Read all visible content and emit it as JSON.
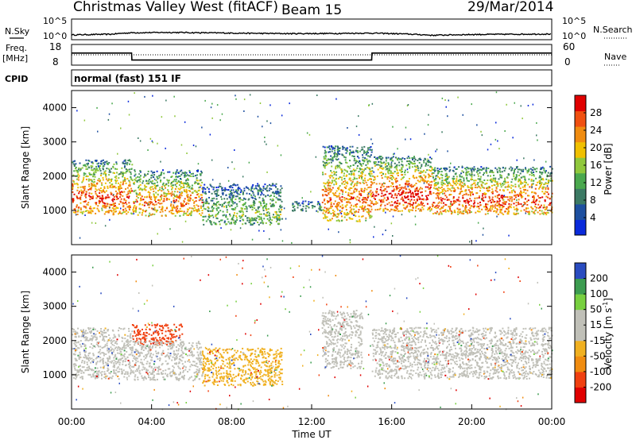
{
  "header": {
    "title": "Christmas Valley West (fitACF)",
    "beam": "Beam 15",
    "date": "29/Mar/2014"
  },
  "nsky_panel": {
    "left_label": "N.Sky",
    "right_label": "N.Search",
    "left_ticks": [
      "10^5",
      "10^0"
    ],
    "right_ticks": [
      "10^5",
      "10^0"
    ]
  },
  "freq_panel": {
    "left_label_1": "Freq.",
    "left_label_2": "[MHz]",
    "left_ticks": [
      "18",
      "8"
    ],
    "right_label": "Nave",
    "right_ticks": [
      "60",
      "0"
    ]
  },
  "cpid_panel": {
    "label": "CPID",
    "text": "normal (fast) 151 IF"
  },
  "colors": {
    "power": [
      "#0a2adb",
      "#1e50a0",
      "#3c7a64",
      "#4aa84e",
      "#90c83c",
      "#f0c000",
      "#f08c10",
      "#f05010",
      "#e00000"
    ],
    "velocity": [
      "#e00000",
      "#f04010",
      "#f08c10",
      "#f0b020",
      "#c0c0b8",
      "#c0c0b8",
      "#78d040",
      "#3c9c50",
      "#2a4cc0"
    ]
  },
  "chart_data": [
    {
      "type": "line",
      "title": "N.Sky / N.Search",
      "x": [
        "00:00",
        "02:00",
        "03:00",
        "05:00",
        "07:00",
        "09:00",
        "11:00",
        "13:00",
        "15:00",
        "17:00",
        "18:00",
        "20:00",
        "24:00"
      ],
      "series": [
        {
          "name": "N.Sky",
          "values": [
            8,
            12,
            32,
            40,
            30,
            22,
            18,
            20,
            25,
            12,
            6,
            10,
            14
          ]
        },
        {
          "name": "N.Search",
          "values": [
            10,
            10,
            10,
            10,
            10,
            10,
            10,
            10,
            10,
            10,
            10,
            10,
            10
          ]
        }
      ],
      "ylim": [
        1,
        100000
      ],
      "log": true
    },
    {
      "type": "line",
      "title": "Freq. / Nave",
      "x": [
        "00:00",
        "03:00",
        "03:01",
        "15:00",
        "15:01",
        "24:00"
      ],
      "series": [
        {
          "name": "Freq. [MHz]",
          "values": [
            14,
            14,
            10,
            10,
            14,
            14
          ]
        },
        {
          "name": "Nave",
          "values": [
            20,
            20,
            20,
            20,
            20,
            20
          ]
        }
      ],
      "ylim": [
        8,
        18
      ]
    },
    {
      "type": "heatmap",
      "title": "Power [dB]",
      "xlabel": "",
      "ylabel": "Slant Range [km]",
      "xlim": [
        "00:00",
        "24:00"
      ],
      "ylim": [
        0,
        4500
      ],
      "x_ticks": [
        "00:00",
        "04:00",
        "08:00",
        "12:00",
        "16:00",
        "20:00",
        "00:00"
      ],
      "y_ticks": [
        "1000",
        "2000",
        "3000",
        "4000"
      ],
      "colorbar_label": "Power [dB]",
      "colorbar_ticks": [
        "4",
        "8",
        "12",
        "16",
        "20",
        "24",
        "28"
      ],
      "colorbar_range": [
        0,
        30
      ],
      "regions": [
        {
          "t_start": 0.0,
          "t_end": 3.0,
          "range_low": 900,
          "range_high": 2500,
          "power": 20
        },
        {
          "t_start": 3.0,
          "t_end": 6.5,
          "range_low": 850,
          "range_high": 2200,
          "power": 18
        },
        {
          "t_start": 6.5,
          "t_end": 10.5,
          "range_low": 600,
          "range_high": 1800,
          "power": 10
        },
        {
          "t_start": 11.0,
          "t_end": 12.5,
          "range_low": 1000,
          "range_high": 1300,
          "power": 8
        },
        {
          "t_start": 12.5,
          "t_end": 15.0,
          "range_low": 700,
          "range_high": 2900,
          "power": 18
        },
        {
          "t_start": 15.0,
          "t_end": 18.0,
          "range_low": 1000,
          "range_high": 2600,
          "power": 22
        },
        {
          "t_start": 18.0,
          "t_end": 24.0,
          "range_low": 900,
          "range_high": 2300,
          "power": 20
        }
      ]
    },
    {
      "type": "heatmap",
      "title": "Velocity [m s^-1]",
      "xlabel": "Time UT",
      "ylabel": "Slant Range [km]",
      "xlim": [
        "00:00",
        "24:00"
      ],
      "ylim": [
        0,
        4500
      ],
      "x_ticks": [
        "00:00",
        "04:00",
        "08:00",
        "12:00",
        "16:00",
        "20:00",
        "00:00"
      ],
      "y_ticks": [
        "1000",
        "2000",
        "3000",
        "4000"
      ],
      "colorbar_label": "Velocity [m s^-1]",
      "colorbar_ticks": [
        "200",
        "100",
        "50",
        "15",
        "-15",
        "-50",
        "-100",
        "-200"
      ],
      "colorbar_range": [
        -250,
        250
      ],
      "regions": [
        {
          "t_start": 0.0,
          "t_end": 3.0,
          "range_low": 900,
          "range_high": 2400,
          "velocity": 0
        },
        {
          "t_start": 3.0,
          "t_end": 5.5,
          "range_low": 1900,
          "range_high": 2500,
          "velocity": -200
        },
        {
          "t_start": 3.0,
          "t_end": 6.5,
          "range_low": 850,
          "range_high": 2000,
          "velocity": 0
        },
        {
          "t_start": 6.5,
          "t_end": 10.5,
          "range_low": 700,
          "range_high": 1800,
          "velocity": -70
        },
        {
          "t_start": 12.5,
          "t_end": 14.5,
          "range_low": 1200,
          "range_high": 2900,
          "velocity": 40
        },
        {
          "t_start": 15.0,
          "t_end": 24.0,
          "range_low": 900,
          "range_high": 2400,
          "velocity": 0
        }
      ]
    }
  ],
  "axis": {
    "xlabel": "Time UT",
    "ylabel": "Slant Range [km]",
    "x_ticks": [
      "00:00",
      "04:00",
      "08:00",
      "12:00",
      "16:00",
      "20:00",
      "00:00"
    ],
    "y_ticks": [
      "1000",
      "2000",
      "3000",
      "4000"
    ]
  },
  "colorbar_power": {
    "label": "Power [dB]",
    "ticks": [
      "28",
      "24",
      "20",
      "16",
      "12",
      "8",
      "4"
    ]
  },
  "colorbar_velocity": {
    "label": "Velocity [m s",
    "label_sup": "-1",
    "label_end": "]",
    "ticks": [
      "200",
      "100",
      "50",
      "15",
      "-15",
      "-50",
      "-100",
      "-200"
    ]
  }
}
